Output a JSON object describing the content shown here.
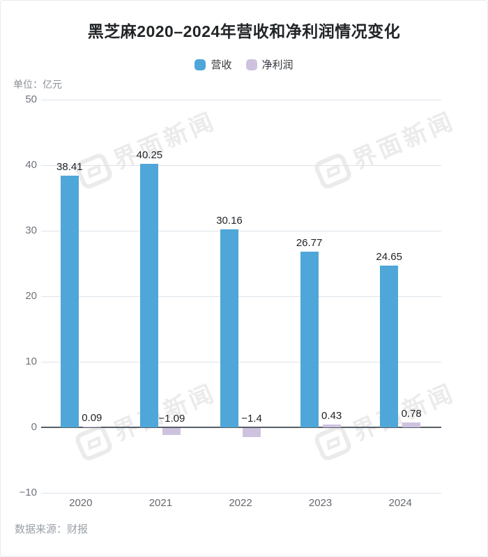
{
  "page": {
    "background": "#ffffff",
    "border_color": "#e9ebed"
  },
  "header": {
    "title": "黑芝麻2020–2024年营收和净利润情况变化",
    "unit_label": "单位：亿元"
  },
  "legend": {
    "items": [
      {
        "label": "营收",
        "color": "#4FA6D8"
      },
      {
        "label": "净利润",
        "color": "#CEC2DF"
      }
    ]
  },
  "footer": {
    "source_label": "数据来源：财报"
  },
  "watermark": {
    "text": "界面新闻",
    "color": "#ebebeb",
    "logo": "jiemian-logo"
  },
  "chart_data": {
    "type": "bar",
    "title": "黑芝麻2020–2024年营收和净利润情况变化",
    "unit": "亿元",
    "categories": [
      "2020",
      "2021",
      "2022",
      "2023",
      "2024"
    ],
    "series": [
      {
        "name": "营收",
        "color": "#4FA6D8",
        "values": [
          38.41,
          40.25,
          30.16,
          26.77,
          24.65
        ],
        "value_labels": [
          "38.41",
          "40.25",
          "30.16",
          "26.77",
          "24.65"
        ]
      },
      {
        "name": "净利润",
        "color": "#CEC2DF",
        "values": [
          0.09,
          -1.09,
          -1.4,
          0.43,
          0.78
        ],
        "value_labels": [
          "0.09",
          "−1.09",
          "−1.4",
          "0.43",
          "0.78"
        ]
      }
    ],
    "ylim": [
      -10,
      50
    ],
    "yticks": [
      50,
      40,
      30,
      20,
      10,
      0,
      -10
    ],
    "ytick_labels": [
      "50",
      "40",
      "30",
      "20",
      "10",
      "0",
      "−10"
    ],
    "grid": true,
    "grid_color": "#dde4ea",
    "zero_line_color": "#585E66",
    "legend_position": "top",
    "source": "数据来源：财报"
  }
}
